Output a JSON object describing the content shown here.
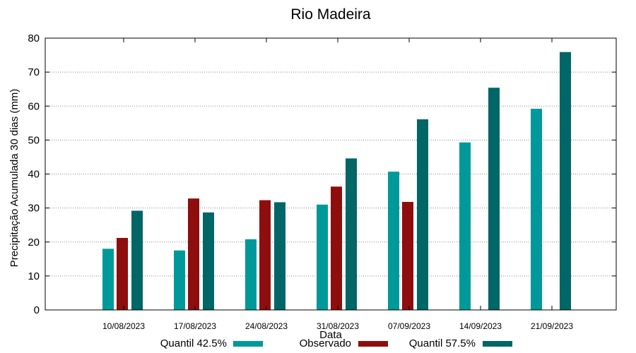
{
  "chart_data": {
    "type": "bar",
    "title": "Rio Madeira",
    "xlabel": "Data",
    "ylabel": "Precipitação Acumulada 30 dias (mm)",
    "ylim": [
      0,
      80
    ],
    "yticks": [
      0,
      10,
      20,
      30,
      40,
      50,
      60,
      70,
      80
    ],
    "grid": "horizontal dotted",
    "legend_position": "bottom",
    "categories": [
      "10/08/2023",
      "17/08/2023",
      "24/08/2023",
      "31/08/2023",
      "07/09/2023",
      "14/09/2023",
      "21/09/2023"
    ],
    "series": [
      {
        "name": "Quantil 42.5%",
        "color": "#009999",
        "values": [
          18,
          17.5,
          20.8,
          31,
          40.7,
          49.3,
          59.2
        ]
      },
      {
        "name": "Observado",
        "color": "#8e0e0e",
        "values": [
          21.2,
          32.8,
          32.3,
          36.3,
          31.8,
          null,
          null
        ]
      },
      {
        "name": "Quantil 57.5%",
        "color": "#006666",
        "values": [
          29.2,
          28.7,
          31.7,
          44.6,
          56.1,
          65.4,
          75.9
        ]
      }
    ]
  }
}
